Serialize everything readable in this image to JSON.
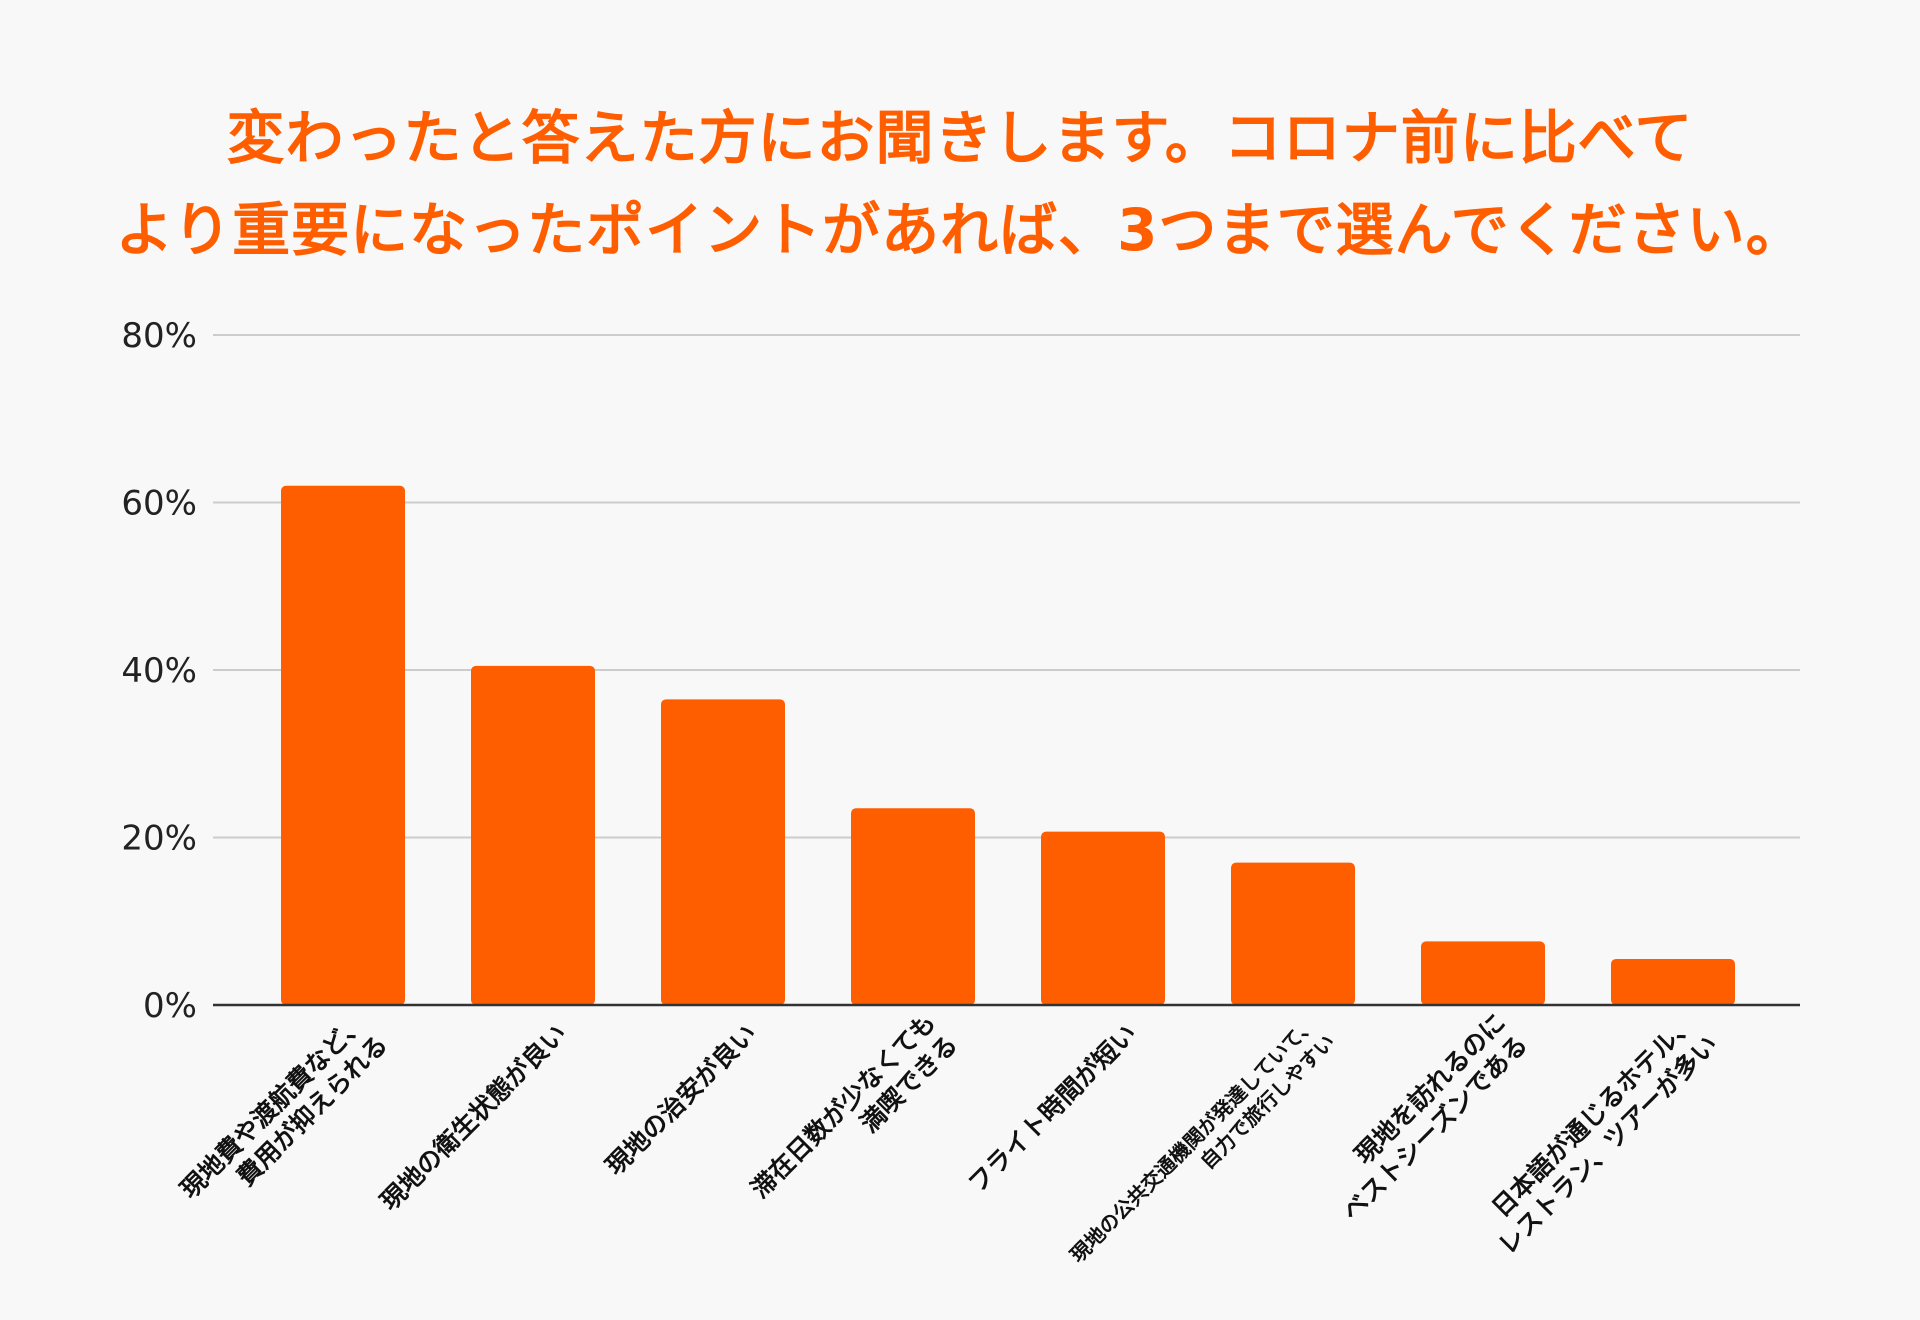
{
  "chart_data": {
    "type": "bar",
    "title_lines": [
      "変わったと答えた方にお聞きします。コロナ前に比べて",
      "より重要になったポイントがあれば、3つまで選んでください。"
    ],
    "categories": [
      [
        "現地費や渡航費など、",
        "費用が抑えられる"
      ],
      [
        "現地の衛生状態が良い"
      ],
      [
        "現地の治安が良い"
      ],
      [
        "滞在日数が少なくても",
        "満喫できる"
      ],
      [
        "フライト時間が短い"
      ],
      [
        "現地の公共交通機関が発達していて、",
        "自力で旅行しやすい"
      ],
      [
        "現地を訪れるのに",
        "ベストシーズンである"
      ],
      [
        "日本語が通じるホテル、",
        "レストラン、ツアーが多い"
      ]
    ],
    "values": [
      62,
      40.5,
      36.5,
      23.5,
      20.7,
      17,
      7.6,
      5.5
    ],
    "ylim": [
      0,
      80
    ],
    "yticks": [
      0,
      20,
      40,
      60,
      80
    ],
    "ytick_labels": [
      "0%",
      "20%",
      "40%",
      "60%",
      "80%"
    ],
    "xlabel": "",
    "ylabel": "",
    "grid": true,
    "bar_color": "#ff5e00",
    "title_color": "#ff5e00",
    "grid_color": "#cccccc",
    "axis_color": "#333333"
  }
}
